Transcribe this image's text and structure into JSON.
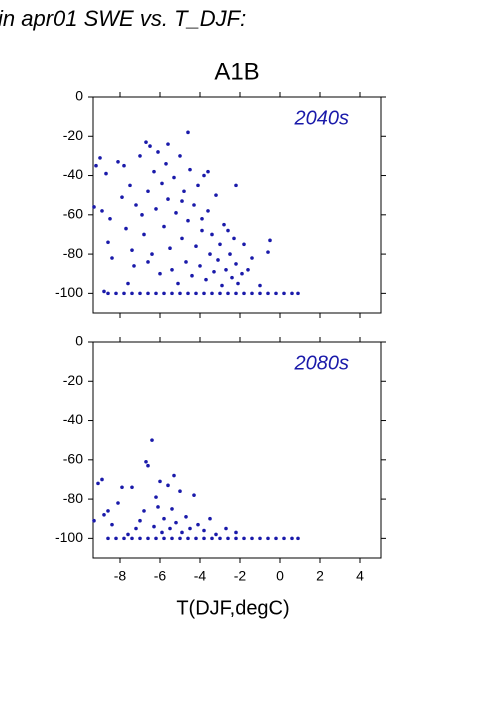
{
  "heading": "in apr01 SWE vs. T_DJF:",
  "chart_data": [
    {
      "type": "scatter",
      "title": "A1B",
      "annotation": "2040s",
      "color": "#1a1aaa",
      "xlim": [
        -9.35,
        5.05
      ],
      "ylim": [
        -110,
        0
      ],
      "xticks": [
        -8,
        -6,
        -4,
        -2,
        0,
        2,
        4
      ],
      "yticks": [
        0,
        -20,
        -40,
        -60,
        -80,
        -100
      ],
      "x": [
        -8.6,
        -8.2,
        -7.8,
        -7.4,
        -7.0,
        -6.6,
        -6.2,
        -5.8,
        -5.4,
        -5.0,
        -4.6,
        -4.2,
        -3.8,
        -3.4,
        -3.0,
        -2.6,
        -2.2,
        -1.8,
        -1.4,
        -1.0,
        -0.6,
        -0.2,
        0.2,
        0.6,
        0.9,
        -9.2,
        -9.0,
        -9.3,
        -8.9,
        -8.7,
        -8.5,
        -8.6,
        -8.4,
        -8.1,
        -7.9,
        -7.8,
        -7.7,
        -7.5,
        -7.4,
        -7.3,
        -7.2,
        -7.0,
        -6.9,
        -6.8,
        -6.7,
        -6.6,
        -6.5,
        -6.4,
        -6.3,
        -6.2,
        -6.1,
        -6.0,
        -5.9,
        -5.8,
        -5.7,
        -5.6,
        -5.5,
        -5.4,
        -5.3,
        -5.2,
        -5.1,
        -5.0,
        -4.9,
        -4.8,
        -4.7,
        -4.6,
        -4.5,
        -4.4,
        -4.3,
        -4.2,
        -4.1,
        -4.0,
        -3.9,
        -3.8,
        -3.7,
        -3.6,
        -3.5,
        -3.4,
        -3.3,
        -3.2,
        -3.1,
        -3.0,
        -2.9,
        -2.8,
        -2.7,
        -2.5,
        -2.4,
        -2.3,
        -2.2,
        -2.1,
        -1.9,
        -1.8,
        -1.6,
        -1.4,
        -1.0,
        -0.6,
        -0.5,
        -4.6,
        -5.6,
        -2.2,
        -3.6,
        -6.6,
        -7.6,
        -8.8,
        -4.9,
        -3.9,
        -2.6
      ],
      "values": [
        -100,
        -100,
        -100,
        -100,
        -100,
        -100,
        -100,
        -100,
        -100,
        -100,
        -100,
        -100,
        -100,
        -100,
        -100,
        -100,
        -100,
        -100,
        -100,
        -100,
        -100,
        -100,
        -100,
        -100,
        -100,
        -35,
        -31,
        -56,
        -58,
        -39,
        -62,
        -74,
        -82,
        -33,
        -51,
        -35,
        -67,
        -45,
        -78,
        -86,
        -55,
        -30,
        -60,
        -70,
        -23,
        -48,
        -25,
        -80,
        -38,
        -57,
        -28,
        -90,
        -44,
        -66,
        -34,
        -52,
        -77,
        -88,
        -41,
        -59,
        -95,
        -30,
        -72,
        -48,
        -84,
        -63,
        -37,
        -91,
        -55,
        -76,
        -45,
        -86,
        -68,
        -40,
        -93,
        -58,
        -80,
        -70,
        -89,
        -50,
        -83,
        -75,
        -96,
        -65,
        -88,
        -80,
        -92,
        -72,
        -85,
        -95,
        -90,
        -75,
        -88,
        -82,
        -96,
        -79,
        -73,
        -18,
        -24,
        -45,
        -38,
        -84,
        -95,
        -99,
        -53,
        -62,
        -68
      ]
    },
    {
      "type": "scatter",
      "annotation": "2080s",
      "xlabel": "T(DJF,degC)",
      "color": "#1a1aaa",
      "xlim": [
        -9.35,
        5.05
      ],
      "ylim": [
        -110,
        0
      ],
      "xticks": [
        -8,
        -6,
        -4,
        -2,
        0,
        2,
        4
      ],
      "yticks": [
        0,
        -20,
        -40,
        -60,
        -80,
        -100
      ],
      "x": [
        -8.6,
        -8.2,
        -7.8,
        -7.4,
        -7.0,
        -6.6,
        -6.2,
        -5.8,
        -5.4,
        -5.0,
        -4.6,
        -4.2,
        -3.8,
        -3.4,
        -3.0,
        -2.6,
        -2.2,
        -1.8,
        -1.4,
        -1.0,
        -0.6,
        -0.2,
        0.2,
        0.6,
        0.9,
        -9.3,
        -9.1,
        -8.9,
        -8.8,
        -8.6,
        -8.4,
        -8.1,
        -7.9,
        -7.6,
        -7.4,
        -7.2,
        -7.0,
        -6.8,
        -6.7,
        -6.6,
        -6.4,
        -6.3,
        -6.2,
        -6.1,
        -6.0,
        -5.9,
        -5.8,
        -5.6,
        -5.5,
        -5.4,
        -5.3,
        -5.2,
        -5.0,
        -4.9,
        -4.7,
        -4.5,
        -4.3,
        -4.1,
        -3.8,
        -3.5,
        -3.2,
        -2.7,
        -2.2
      ],
      "values": [
        -100,
        -100,
        -100,
        -100,
        -100,
        -100,
        -100,
        -100,
        -100,
        -100,
        -100,
        -100,
        -100,
        -100,
        -100,
        -100,
        -100,
        -100,
        -100,
        -100,
        -100,
        -100,
        -100,
        -100,
        -100,
        -91,
        -72,
        -70,
        -88,
        -86,
        -93,
        -82,
        -74,
        -98,
        -74,
        -95,
        -91,
        -86,
        -61,
        -63,
        -50,
        -94,
        -79,
        -84,
        -71,
        -97,
        -90,
        -73,
        -95,
        -85,
        -68,
        -92,
        -76,
        -97,
        -89,
        -95,
        -78,
        -93,
        -96,
        -90,
        -98,
        -95,
        -97
      ]
    }
  ]
}
